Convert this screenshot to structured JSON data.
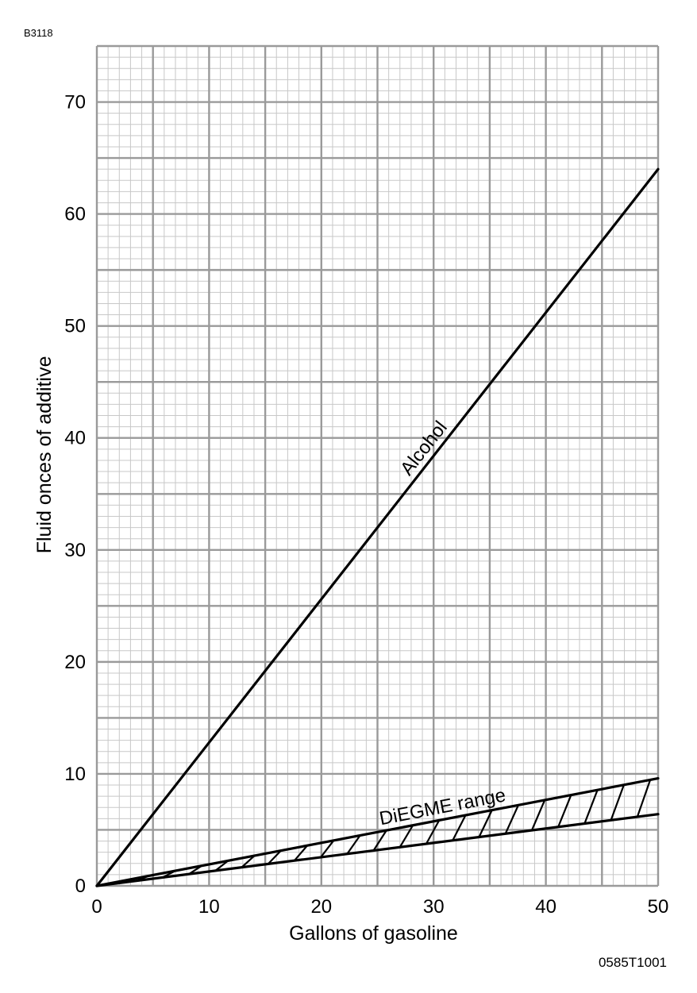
{
  "figure": {
    "top_id": "B3118",
    "bottom_id": "0585T1001"
  },
  "chart_data": {
    "type": "line",
    "xlabel": "Gallons of gasoline",
    "ylabel": "Fluid onces of additive",
    "xlim": [
      0,
      50
    ],
    "ylim": [
      0,
      75
    ],
    "x_ticks": [
      0,
      10,
      20,
      30,
      40,
      50
    ],
    "y_ticks": [
      0,
      10,
      20,
      30,
      40,
      50,
      60,
      70
    ],
    "grid": true,
    "series": [
      {
        "name": "Alcohol",
        "x": [
          0,
          50
        ],
        "y": [
          0,
          64
        ]
      },
      {
        "name": "DiEGME range",
        "kind": "range",
        "x": [
          0,
          50
        ],
        "y_low": [
          0,
          6.4
        ],
        "y_high": [
          0,
          9.6
        ],
        "y_mid_end": 8.3
      }
    ],
    "annotations": [
      {
        "text": "Alcohol",
        "series": "Alcohol",
        "at_x": 30
      },
      {
        "text": "DiEGME range",
        "series": "DiEGME range",
        "at_x": 31
      }
    ],
    "colors": {
      "line": "#000000",
      "grid_major": "#9a9a9a",
      "grid_minor": "#c8c8c8"
    }
  }
}
